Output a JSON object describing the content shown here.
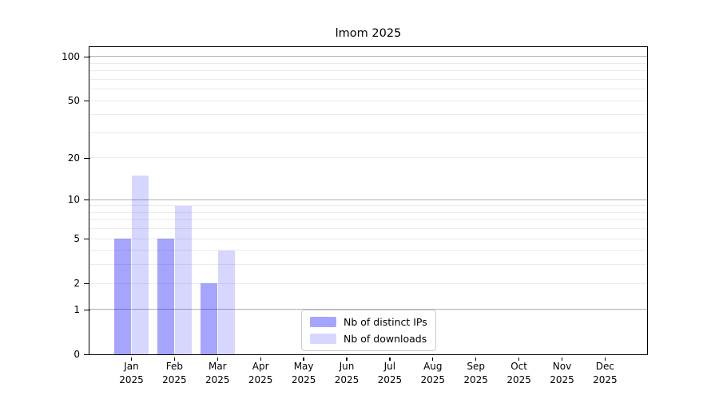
{
  "title": "lmom 2025",
  "chart_data": {
    "type": "bar",
    "title": "lmom 2025",
    "xlabel": "",
    "ylabel": "",
    "categories": [
      "Jan 2025",
      "Feb 2025",
      "Mar 2025",
      "Apr 2025",
      "May 2025",
      "Jun 2025",
      "Jul 2025",
      "Aug 2025",
      "Sep 2025",
      "Oct 2025",
      "Nov 2025",
      "Dec 2025"
    ],
    "series": [
      {
        "name": "Nb of distinct IPs",
        "color": "#0000FF5A",
        "values": [
          5,
          5,
          2,
          0,
          0,
          0,
          0,
          0,
          0,
          0,
          0,
          0
        ]
      },
      {
        "name": "Nb of downloads",
        "color": "#0000FF29",
        "values": [
          15,
          9,
          4,
          0,
          0,
          0,
          0,
          0,
          0,
          0,
          0,
          0
        ]
      }
    ],
    "y_axis": {
      "scale": "log1p",
      "tick_values": [
        0,
        1,
        2,
        5,
        10,
        20,
        50,
        100
      ],
      "tick_labels": [
        "0",
        "1",
        "2",
        "5",
        "10",
        "20",
        "50",
        "100"
      ],
      "max": 116,
      "major_gridlines": [
        1,
        10,
        100
      ],
      "minor_gridlines": [
        2,
        3,
        4,
        5,
        6,
        7,
        8,
        9,
        20,
        30,
        40,
        50,
        60,
        70,
        80,
        90
      ]
    },
    "legend": {
      "position": "lower center",
      "entries": [
        "Nb of distinct IPs",
        "Nb of downloads"
      ]
    },
    "grid": true
  },
  "colors": {
    "background": "#ffffff",
    "bar_distinct_ips": "#0000FF5A",
    "bar_downloads": "#0000FF29",
    "major_gridline": "#b2b2b2",
    "minor_gridline": "#ebebeb",
    "axis": "#000000",
    "text": "#000000",
    "legend_border": "#cccccc"
  }
}
